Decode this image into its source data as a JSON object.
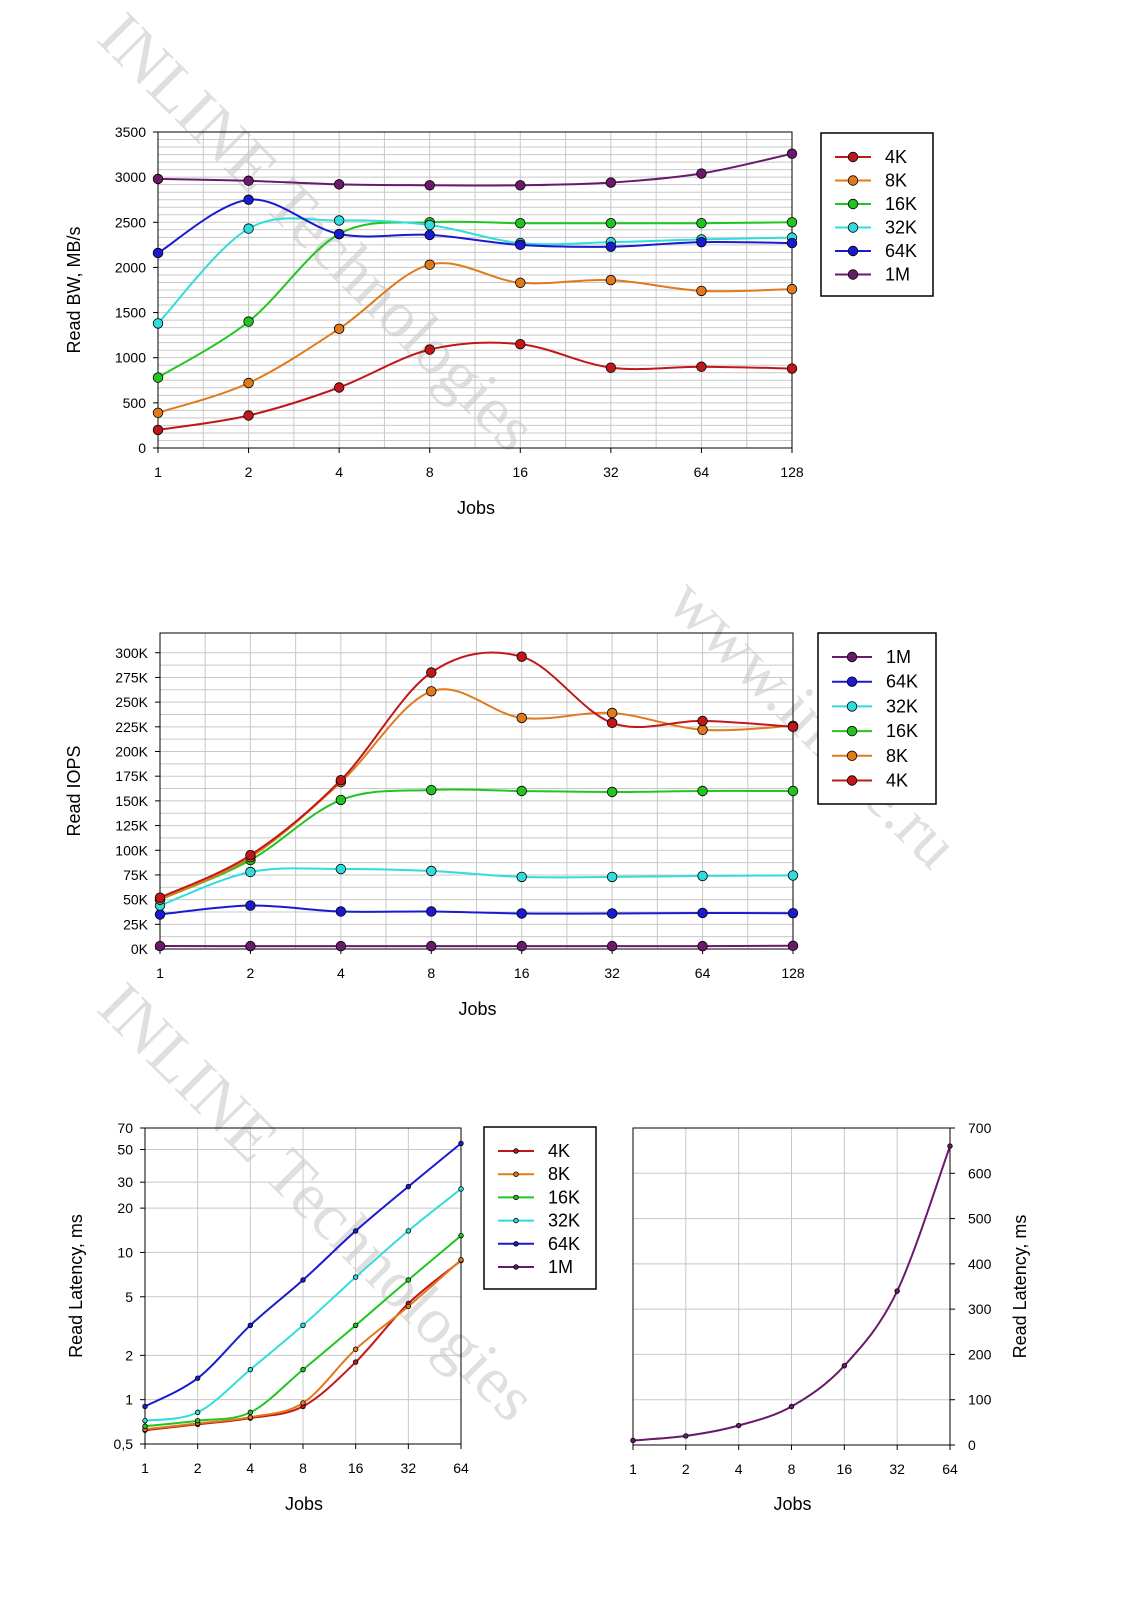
{
  "watermarks": [
    "INLINE Technologies",
    "www.inline.ru",
    "INLINE Technologies"
  ],
  "colors": {
    "4K": "#c0181a",
    "8K": "#e07a1a",
    "16K": "#22c422",
    "32K": "#33dcdc",
    "64K": "#1a1ad0",
    "1M": "#6a1a6a"
  },
  "chart_data": [
    {
      "type": "line",
      "xlabel": "Jobs",
      "ylabel": "Read BW, MB/s",
      "categories": [
        "1",
        "2",
        "4",
        "8",
        "16",
        "32",
        "64",
        "128"
      ],
      "yticks": [
        "0",
        "500",
        "1000",
        "1500",
        "2000",
        "2500",
        "3000",
        "3500"
      ],
      "ylim": [
        0,
        3500
      ],
      "yscale": "linear",
      "grid": true,
      "legend_position": "right",
      "legend": [
        "4K",
        "8K",
        "16K",
        "32K",
        "64K",
        "1M"
      ],
      "series": [
        {
          "name": "4K",
          "values": [
            200,
            360,
            670,
            1090,
            1150,
            890,
            900,
            880
          ]
        },
        {
          "name": "8K",
          "values": [
            390,
            720,
            1320,
            2030,
            1830,
            1860,
            1740,
            1760
          ]
        },
        {
          "name": "16K",
          "values": [
            780,
            1400,
            2370,
            2500,
            2490,
            2490,
            2490,
            2500
          ]
        },
        {
          "name": "32K",
          "values": [
            1380,
            2430,
            2520,
            2470,
            2270,
            2280,
            2310,
            2330
          ]
        },
        {
          "name": "64K",
          "values": [
            2160,
            2750,
            2370,
            2360,
            2250,
            2230,
            2280,
            2270
          ]
        },
        {
          "name": "1M",
          "values": [
            2980,
            2960,
            2920,
            2910,
            2910,
            2940,
            3040,
            3260
          ]
        }
      ]
    },
    {
      "type": "line",
      "xlabel": "Jobs",
      "ylabel": "Read IOPS",
      "categories": [
        "1",
        "2",
        "4",
        "8",
        "16",
        "32",
        "64",
        "128"
      ],
      "yticks": [
        "0K",
        "25K",
        "50K",
        "75K",
        "100K",
        "125K",
        "150K",
        "175K",
        "200K",
        "225K",
        "250K",
        "275K",
        "300K"
      ],
      "ylim": [
        0,
        320000
      ],
      "yscale": "linear",
      "grid": true,
      "legend_position": "right",
      "legend": [
        "1M",
        "64K",
        "32K",
        "16K",
        "8K",
        "4K"
      ],
      "series": [
        {
          "name": "1M",
          "values": [
            3000,
            2900,
            2900,
            2900,
            2900,
            2900,
            2900,
            3200
          ]
        },
        {
          "name": "64K",
          "values": [
            35000,
            44000,
            38000,
            38000,
            36000,
            36000,
            36500,
            36300
          ]
        },
        {
          "name": "32K",
          "values": [
            44000,
            78000,
            81000,
            79000,
            73000,
            73000,
            74000,
            74500
          ]
        },
        {
          "name": "16K",
          "values": [
            50000,
            90000,
            151000,
            161000,
            160000,
            159000,
            160000,
            160000
          ]
        },
        {
          "name": "8K",
          "values": [
            50000,
            93000,
            169000,
            261000,
            234000,
            239000,
            222000,
            226000
          ]
        },
        {
          "name": "4K",
          "values": [
            52000,
            95000,
            171000,
            280000,
            296000,
            229000,
            231000,
            225000
          ]
        }
      ]
    },
    {
      "type": "line",
      "xlabel": "Jobs",
      "ylabel": "Read Latency, ms",
      "categories": [
        "1",
        "2",
        "4",
        "8",
        "16",
        "32",
        "64"
      ],
      "yticks": [
        "0,5",
        "1",
        "2",
        "5",
        "10",
        "20",
        "30",
        "50",
        "70"
      ],
      "ylim": [
        0.5,
        70
      ],
      "yscale": "log",
      "grid": true,
      "legend_position": "right",
      "legend": [
        "4K",
        "8K",
        "16K",
        "32K",
        "64K",
        "1M"
      ],
      "series": [
        {
          "name": "4K",
          "values": [
            0.62,
            0.68,
            0.75,
            0.9,
            1.8,
            4.5,
            8.8
          ]
        },
        {
          "name": "8K",
          "values": [
            0.63,
            0.69,
            0.76,
            0.95,
            2.2,
            4.3,
            8.9
          ]
        },
        {
          "name": "16K",
          "values": [
            0.66,
            0.72,
            0.82,
            1.6,
            3.2,
            6.5,
            13
          ]
        },
        {
          "name": "32K",
          "values": [
            0.72,
            0.82,
            1.6,
            3.2,
            6.8,
            14,
            27
          ]
        },
        {
          "name": "64K",
          "values": [
            0.9,
            1.4,
            3.2,
            6.5,
            14,
            28,
            55
          ]
        }
      ]
    },
    {
      "type": "line",
      "xlabel": "Jobs",
      "ylabel": "Read Latency, ms",
      "categories": [
        "1",
        "2",
        "4",
        "8",
        "16",
        "32",
        "64"
      ],
      "yticks": [
        "0",
        "100",
        "200",
        "300",
        "400",
        "500",
        "600",
        "700"
      ],
      "ylim": [
        0,
        700
      ],
      "yscale": "linear",
      "yaxis_side": "right",
      "grid": true,
      "series": [
        {
          "name": "1M",
          "values": [
            10,
            20,
            43,
            85,
            175,
            340,
            660
          ]
        }
      ]
    }
  ]
}
